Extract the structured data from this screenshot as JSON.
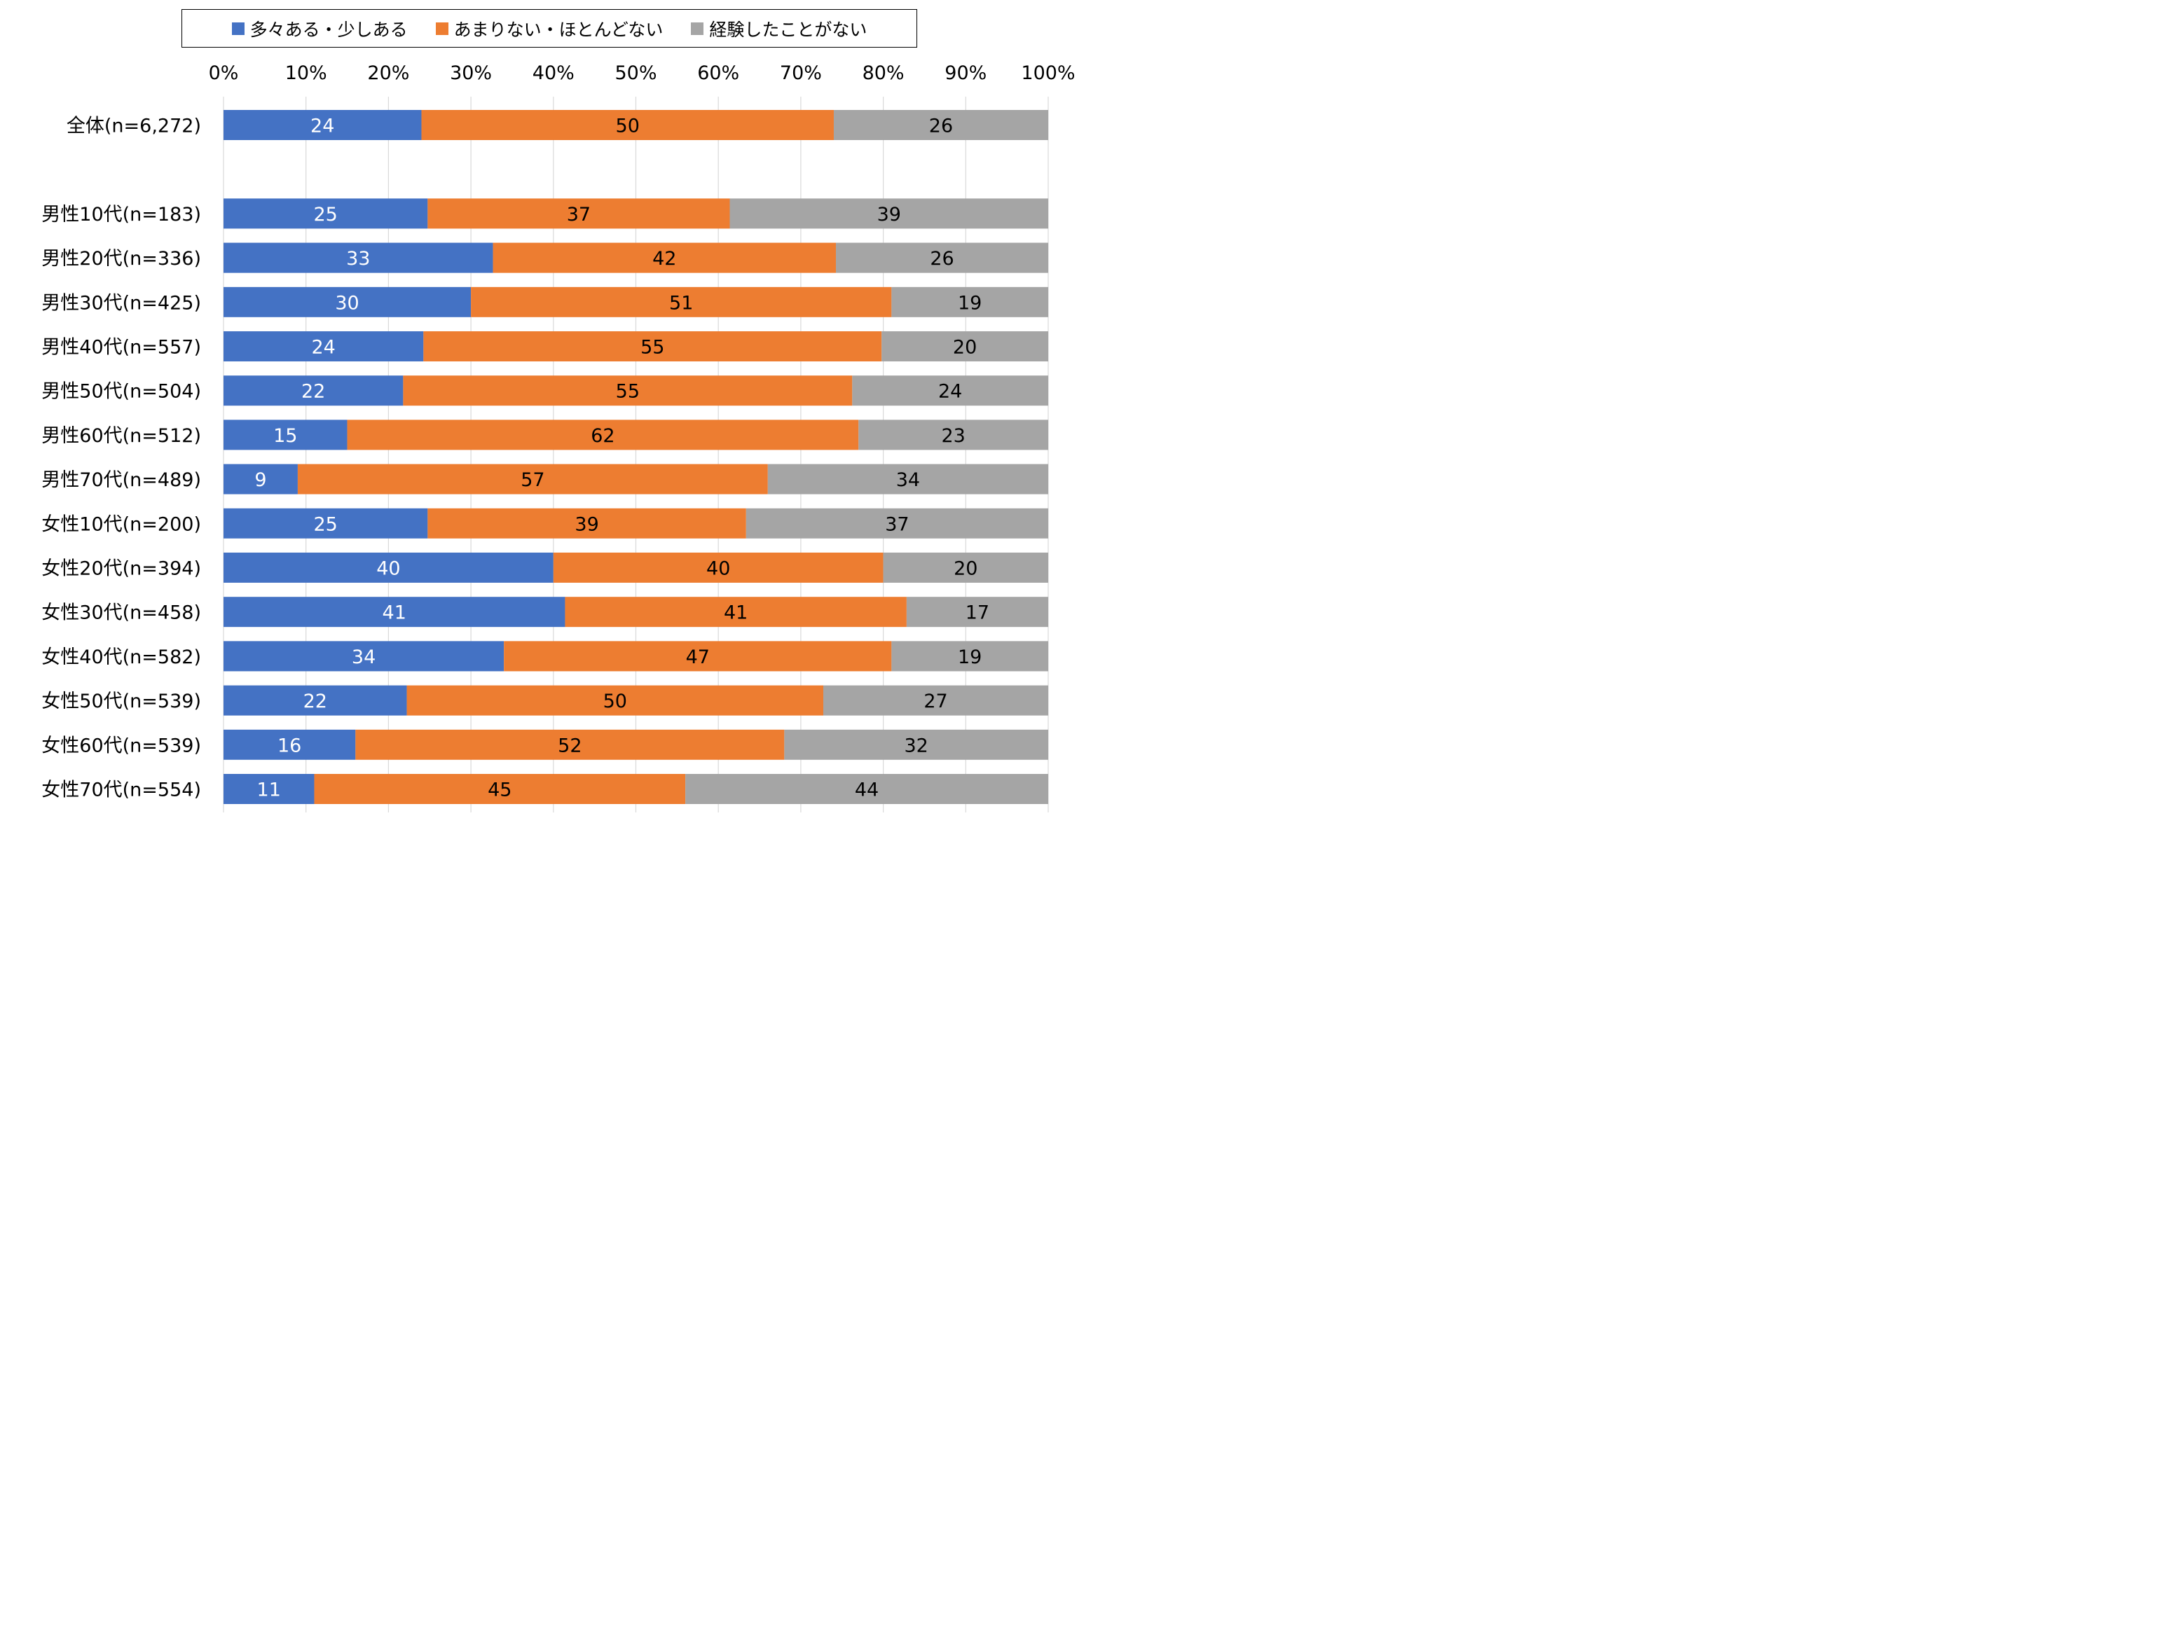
{
  "chart_data": {
    "type": "bar",
    "orientation": "horizontal",
    "stacked": true,
    "percent_axis": true,
    "xlim": [
      0,
      100
    ],
    "x_ticks": [
      "0%",
      "10%",
      "20%",
      "30%",
      "40%",
      "50%",
      "60%",
      "70%",
      "80%",
      "90%",
      "100%"
    ],
    "grid": "vertical",
    "legend_position": "top",
    "categories": [
      "全体(n=6,272)",
      "",
      "男性10代(n=183)",
      "男性20代(n=336)",
      "男性30代(n=425)",
      "男性40代(n=557)",
      "男性50代(n=504)",
      "男性60代(n=512)",
      "男性70代(n=489)",
      "女性10代(n=200)",
      "女性20代(n=394)",
      "女性30代(n=458)",
      "女性40代(n=582)",
      "女性50代(n=539)",
      "女性60代(n=539)",
      "女性70代(n=554)"
    ],
    "series": [
      {
        "name": "多々ある・少しある",
        "color": "#4472C4",
        "label_color": "#FFFFFF",
        "values": [
          24,
          null,
          25,
          33,
          30,
          24,
          22,
          15,
          9,
          25,
          40,
          41,
          34,
          22,
          16,
          11
        ]
      },
      {
        "name": "あまりない・ほとんどない",
        "color": "#ED7D31",
        "label_color": "#000000",
        "values": [
          50,
          null,
          37,
          42,
          51,
          55,
          55,
          62,
          57,
          39,
          40,
          41,
          47,
          50,
          52,
          45
        ]
      },
      {
        "name": "経験したことがない",
        "color": "#A5A5A5",
        "label_color": "#000000",
        "values": [
          26,
          null,
          39,
          26,
          19,
          20,
          24,
          23,
          34,
          37,
          20,
          17,
          19,
          27,
          32,
          44
        ]
      }
    ]
  }
}
